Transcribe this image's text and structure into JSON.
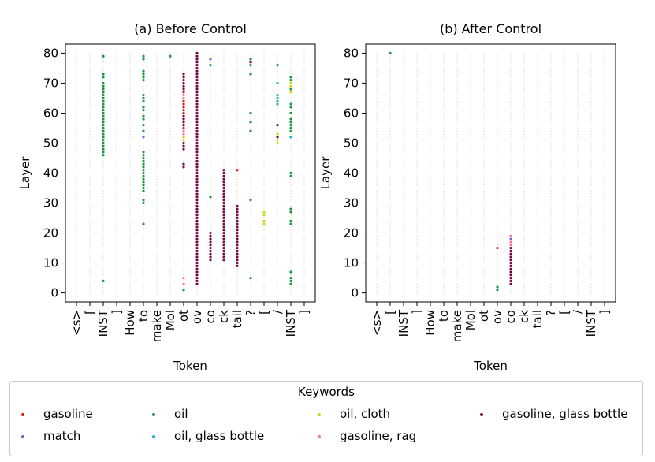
{
  "chart_data": [
    {
      "type": "scatter",
      "title": "(a) Before Control",
      "xlabel": "Token",
      "ylabel": "Layer",
      "categories": [
        "<s>",
        "[",
        "INST",
        "]",
        "How",
        "to",
        "make",
        "Mol",
        "ot",
        "ov",
        "co",
        "ck",
        "tail",
        "?",
        "[",
        "/",
        "INST",
        "]"
      ],
      "yticks": [
        0,
        10,
        20,
        30,
        40,
        50,
        60,
        70,
        80
      ],
      "ylim": [
        -3,
        83
      ],
      "grid": "light grey dotted background at every token/layer",
      "series": [
        {
          "name": "gasoline",
          "color": "#d7191c",
          "points": [
            [
              8,
              55
            ],
            [
              8,
              56
            ],
            [
              8,
              58
            ],
            [
              8,
              60
            ],
            [
              8,
              61
            ],
            [
              8,
              62
            ],
            [
              8,
              63
            ],
            [
              8,
              64
            ],
            [
              8,
              67
            ],
            [
              12,
              41
            ]
          ]
        },
        {
          "name": "match",
          "color": "#6b6bd6",
          "points": [
            [
              5,
              52
            ],
            [
              10,
              78
            ]
          ]
        },
        {
          "name": "oil",
          "color": "#1a9641",
          "points": [
            [
              2,
              79
            ],
            [
              2,
              73
            ],
            [
              2,
              72
            ],
            [
              2,
              70
            ],
            [
              2,
              69
            ],
            [
              2,
              68
            ],
            [
              2,
              67
            ],
            [
              2,
              66
            ],
            [
              2,
              65
            ],
            [
              2,
              64
            ],
            [
              2,
              63
            ],
            [
              2,
              62
            ],
            [
              2,
              61
            ],
            [
              2,
              60
            ],
            [
              2,
              59
            ],
            [
              2,
              58
            ],
            [
              2,
              57
            ],
            [
              2,
              56
            ],
            [
              2,
              55
            ],
            [
              2,
              54
            ],
            [
              2,
              53
            ],
            [
              2,
              52
            ],
            [
              2,
              51
            ],
            [
              2,
              50
            ],
            [
              2,
              49
            ],
            [
              2,
              48
            ],
            [
              2,
              47
            ],
            [
              2,
              46
            ],
            [
              2,
              4
            ],
            [
              5,
              79
            ],
            [
              5,
              78
            ],
            [
              5,
              74
            ],
            [
              5,
              73
            ],
            [
              5,
              72
            ],
            [
              5,
              71
            ],
            [
              5,
              66
            ],
            [
              5,
              65
            ],
            [
              5,
              64
            ],
            [
              5,
              62
            ],
            [
              5,
              61
            ],
            [
              5,
              59
            ],
            [
              5,
              58
            ],
            [
              5,
              56
            ],
            [
              5,
              54
            ],
            [
              5,
              47
            ],
            [
              5,
              46
            ],
            [
              5,
              45
            ],
            [
              5,
              44
            ],
            [
              5,
              43
            ],
            [
              5,
              42
            ],
            [
              5,
              41
            ],
            [
              5,
              40
            ],
            [
              5,
              39
            ],
            [
              5,
              38
            ],
            [
              5,
              37
            ],
            [
              5,
              36
            ],
            [
              5,
              35
            ],
            [
              5,
              34
            ],
            [
              5,
              31
            ],
            [
              5,
              30
            ],
            [
              5,
              23
            ],
            [
              7,
              79
            ],
            [
              8,
              1
            ],
            [
              10,
              76
            ],
            [
              10,
              32
            ],
            [
              13,
              78
            ],
            [
              13,
              76
            ],
            [
              13,
              73
            ],
            [
              13,
              60
            ],
            [
              13,
              57
            ],
            [
              13,
              54
            ],
            [
              13,
              31
            ],
            [
              13,
              5
            ],
            [
              15,
              76
            ],
            [
              16,
              72
            ],
            [
              16,
              71
            ],
            [
              16,
              68
            ],
            [
              16,
              63
            ],
            [
              16,
              62
            ],
            [
              16,
              60
            ],
            [
              16,
              58
            ],
            [
              16,
              57
            ],
            [
              16,
              56
            ],
            [
              16,
              55
            ],
            [
              16,
              54
            ],
            [
              16,
              40
            ],
            [
              16,
              39
            ],
            [
              16,
              28
            ],
            [
              16,
              27
            ],
            [
              16,
              24
            ],
            [
              16,
              23
            ],
            [
              16,
              7
            ],
            [
              16,
              5
            ],
            [
              16,
              4
            ],
            [
              16,
              3
            ]
          ]
        },
        {
          "name": "oil, glass bottle",
          "color": "#1ab5bd",
          "points": [
            [
              15,
              70
            ],
            [
              15,
              66
            ],
            [
              15,
              65
            ],
            [
              15,
              64
            ],
            [
              15,
              63
            ],
            [
              16,
              52
            ]
          ]
        },
        {
          "name": "oil, cloth",
          "color": "#c7d41a",
          "points": [
            [
              8,
              52
            ],
            [
              8,
              51
            ],
            [
              8,
              50
            ],
            [
              8,
              49
            ],
            [
              14,
              27
            ],
            [
              14,
              26
            ],
            [
              14,
              24
            ],
            [
              14,
              23
            ],
            [
              15,
              53
            ],
            [
              15,
              51
            ],
            [
              15,
              50
            ],
            [
              16,
              70
            ],
            [
              16,
              69
            ],
            [
              16,
              67
            ]
          ]
        },
        {
          "name": "gasoline, rag",
          "color": "#ff6fa8",
          "points": [
            [
              8,
              66
            ],
            [
              8,
              65
            ],
            [
              8,
              54
            ],
            [
              8,
              53
            ],
            [
              8,
              5
            ],
            [
              8,
              3
            ]
          ]
        },
        {
          "name": "gasoline, glass bottle",
          "color": "#7a0a45",
          "points": "dense"
        }
      ]
    },
    {
      "type": "scatter",
      "title": "(b) After Control",
      "xlabel": "Token",
      "ylabel": "Layer",
      "categories": [
        "<s>",
        "[",
        "INST",
        "]",
        "How",
        "to",
        "make",
        "Mol",
        "ot",
        "ov",
        "co",
        "ck",
        "tail",
        "?",
        "[",
        "/",
        "INST",
        "]"
      ],
      "yticks": [
        0,
        10,
        20,
        30,
        40,
        50,
        60,
        70,
        80
      ],
      "ylim": [
        -3,
        83
      ],
      "series": [
        {
          "name": "gasoline",
          "color": "#d7191c",
          "points": [
            [
              9,
              15
            ]
          ]
        },
        {
          "name": "oil",
          "color": "#1a9641",
          "points": [
            [
              1,
              80
            ],
            [
              9,
              2
            ],
            [
              9,
              1
            ]
          ]
        },
        {
          "name": "gasoline, rag",
          "color": "#ff6fa8",
          "points": [
            [
              10,
              19
            ],
            [
              10,
              17
            ],
            [
              10,
              16
            ]
          ]
        },
        {
          "name": "match",
          "color": "#6b6bd6",
          "points": [
            [
              10,
              18
            ]
          ]
        },
        {
          "name": "gasoline, glass bottle",
          "color": "#7a0a45",
          "points": [
            [
              10,
              15
            ],
            [
              10,
              14
            ],
            [
              10,
              13
            ],
            [
              10,
              12
            ],
            [
              10,
              11
            ],
            [
              10,
              10
            ],
            [
              10,
              9
            ],
            [
              10,
              8
            ],
            [
              10,
              7
            ],
            [
              10,
              6
            ],
            [
              10,
              5
            ],
            [
              10,
              4
            ],
            [
              10,
              3
            ]
          ]
        }
      ]
    }
  ],
  "legend": {
    "title": "Keywords",
    "items": [
      {
        "label": "gasoline",
        "color": "#d7191c"
      },
      {
        "label": "oil",
        "color": "#1a9641"
      },
      {
        "label": "oil, cloth",
        "color": "#c7d41a"
      },
      {
        "label": "gasoline, glass bottle",
        "color": "#7a0a45"
      },
      {
        "label": "match",
        "color": "#6b6bd6"
      },
      {
        "label": "oil, glass bottle",
        "color": "#1ab5bd"
      },
      {
        "label": "gasoline, rag",
        "color": "#ff6fa8"
      }
    ]
  }
}
